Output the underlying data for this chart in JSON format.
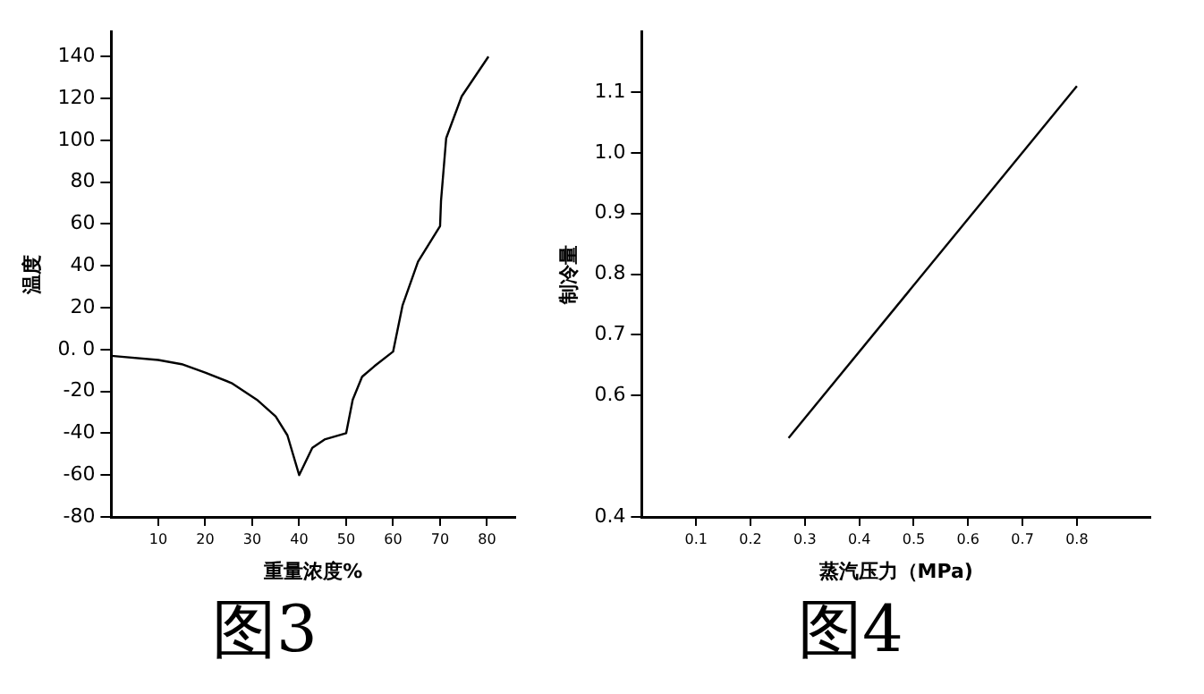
{
  "chart_data": [
    {
      "type": "line",
      "title": "图3",
      "xlabel": "重量浓度%",
      "ylabel": "温度",
      "marker": "none",
      "legend": false,
      "x": [
        0,
        10,
        15,
        20,
        25.6,
        31,
        35,
        37.5,
        40,
        42.8,
        45.4,
        50,
        51.4,
        53.4,
        56,
        60,
        62,
        65.3,
        70,
        70.2,
        71.3,
        74.6,
        80.3
      ],
      "series": [
        {
          "color": "#000000",
          "values": [
            -3,
            -5,
            -7,
            -11,
            -16,
            -24,
            -32,
            -41,
            -60,
            -47,
            -43,
            -40,
            -24,
            -13,
            -8,
            -1,
            21,
            42,
            59,
            71,
            101,
            121,
            140
          ]
        }
      ],
      "xlim": [
        0,
        86
      ],
      "xticks": [
        10,
        20,
        30,
        40,
        50,
        60,
        70,
        80
      ],
      "ylim": [
        -80,
        152
      ],
      "yticks": [
        -80,
        -60,
        -40,
        -20,
        {
          "value": 0,
          "label": "0. 0"
        },
        20,
        40,
        60,
        80,
        100,
        120,
        140
      ]
    },
    {
      "type": "line",
      "title": "图4",
      "xlabel": "蒸汽压力（MPa)",
      "ylabel": "制冷量",
      "marker": "none",
      "legend": false,
      "x": [
        0.27,
        0.8
      ],
      "series": [
        {
          "color": "#000000",
          "values": [
            0.53,
            1.11
          ]
        }
      ],
      "xlim": [
        0,
        0.935
      ],
      "xticks": [
        0.1,
        0.2,
        0.3,
        0.4,
        0.5,
        0.6,
        0.7,
        0.8
      ],
      "ylim": [
        0.4,
        1.2
      ],
      "yticks": [
        0.4,
        0.6,
        0.7,
        0.8,
        0.9,
        {
          "value": 1.0,
          "label": "1.0"
        },
        1.1
      ]
    }
  ]
}
